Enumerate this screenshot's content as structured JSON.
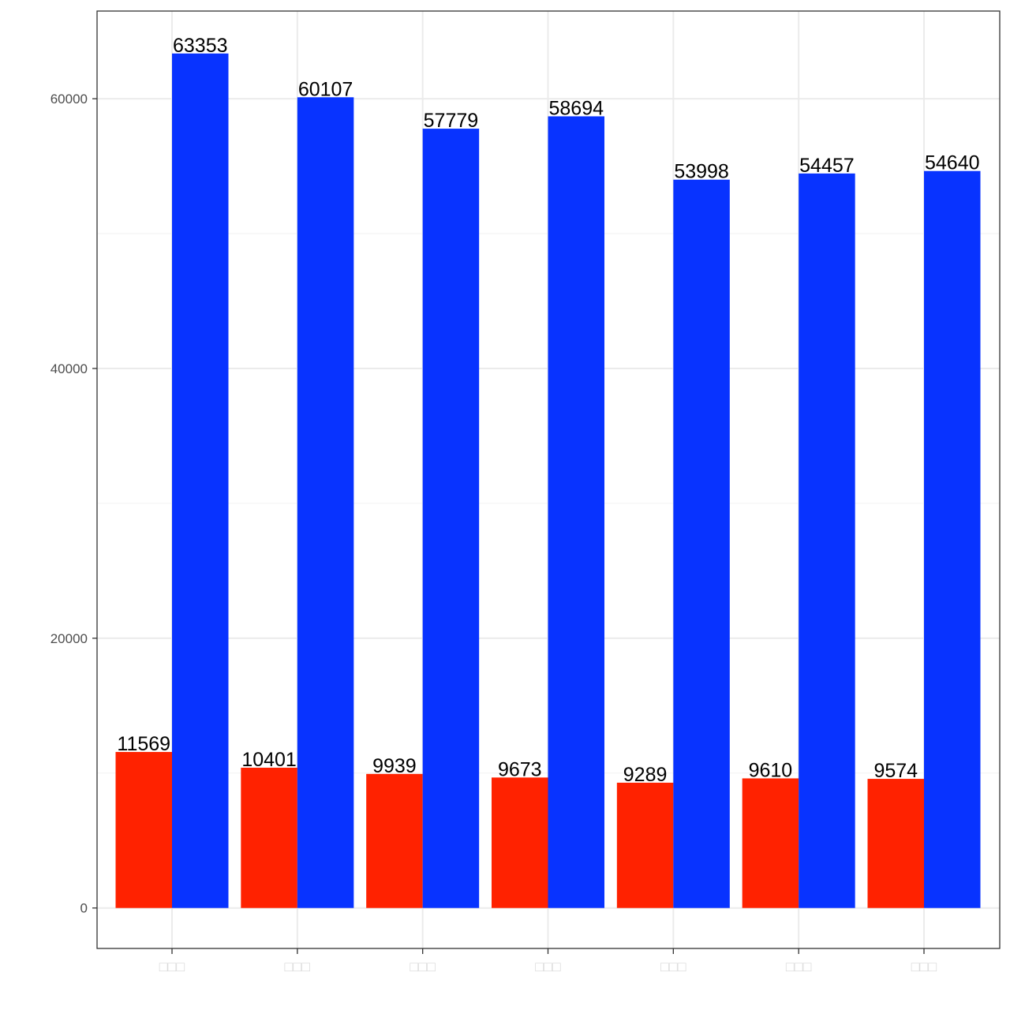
{
  "chart_data": {
    "type": "bar",
    "categories": [
      "□□□",
      "□□□",
      "□□□",
      "□□□",
      "□□□",
      "□□□",
      "□□□"
    ],
    "series": [
      {
        "values": [
          11569,
          10401,
          9939,
          9673,
          9289,
          9610,
          9574
        ],
        "color": "#ff2200"
      },
      {
        "values": [
          63353,
          60107,
          57779,
          58694,
          53998,
          54457,
          54640
        ],
        "color": "#0833ff"
      }
    ],
    "ylim": [
      -3000,
      66500
    ],
    "yticks": [
      0,
      20000,
      40000,
      60000
    ],
    "grid": true,
    "legend": "none",
    "data_labels": true
  }
}
